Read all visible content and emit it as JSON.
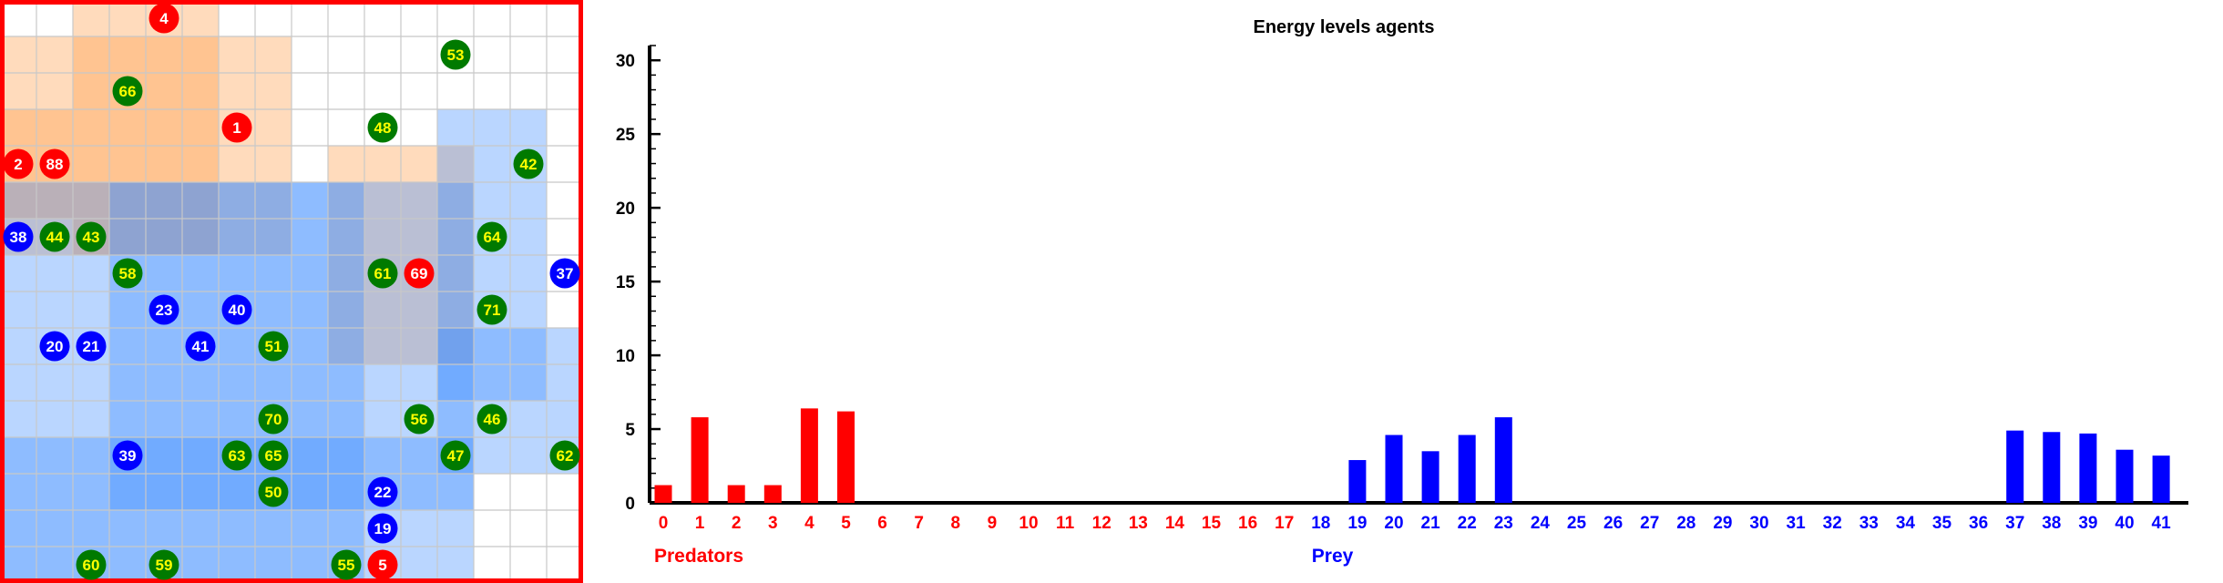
{
  "colors": {
    "predator": "#ff0000",
    "prey": "#0000ff",
    "food": "#007a00",
    "food_label": "#ffff00",
    "agent_label": "#ffffff",
    "grid_line": "#c8c8c8",
    "border": "#ff0000"
  },
  "grid": {
    "columns": 16,
    "rows": 16,
    "orange_zones": [
      [
        2,
        6,
        0,
        7
      ],
      [
        0,
        8,
        1,
        7
      ],
      [
        0,
        2,
        3,
        6
      ],
      [
        9,
        13,
        4,
        10
      ]
    ],
    "blue_zones": [
      [
        0,
        10,
        5,
        16
      ],
      [
        3,
        13,
        5,
        14
      ],
      [
        12,
        15,
        3,
        11
      ],
      [
        12,
        16,
        9,
        13
      ],
      [
        0,
        7,
        12,
        16
      ],
      [
        7,
        13,
        12,
        16
      ]
    ],
    "agents": [
      {
        "id": "4",
        "kind": "predator",
        "col": 4,
        "row": 0
      },
      {
        "id": "53",
        "kind": "food",
        "col": 12,
        "row": 1
      },
      {
        "id": "66",
        "kind": "food",
        "col": 3,
        "row": 2
      },
      {
        "id": "1",
        "kind": "predator",
        "col": 6,
        "row": 3
      },
      {
        "id": "48",
        "kind": "food",
        "col": 10,
        "row": 3
      },
      {
        "id": "2",
        "kind": "predator",
        "col": 0,
        "row": 4
      },
      {
        "id": "88",
        "kind": "predator",
        "col": 1,
        "row": 4
      },
      {
        "id": "42",
        "kind": "food",
        "col": 14,
        "row": 4
      },
      {
        "id": "38",
        "kind": "prey",
        "col": 0,
        "row": 6
      },
      {
        "id": "44",
        "kind": "food",
        "col": 1,
        "row": 6
      },
      {
        "id": "43",
        "kind": "food",
        "col": 2,
        "row": 6
      },
      {
        "id": "64",
        "kind": "food",
        "col": 13,
        "row": 6
      },
      {
        "id": "58",
        "kind": "food",
        "col": 3,
        "row": 7
      },
      {
        "id": "61",
        "kind": "food",
        "col": 10,
        "row": 7
      },
      {
        "id": "69",
        "kind": "predator",
        "col": 11,
        "row": 7
      },
      {
        "id": "37",
        "kind": "prey",
        "col": 15,
        "row": 7
      },
      {
        "id": "23",
        "kind": "prey",
        "col": 4,
        "row": 8
      },
      {
        "id": "40",
        "kind": "prey",
        "col": 6,
        "row": 8
      },
      {
        "id": "71",
        "kind": "food",
        "col": 13,
        "row": 8
      },
      {
        "id": "20",
        "kind": "prey",
        "col": 1,
        "row": 9
      },
      {
        "id": "21",
        "kind": "prey",
        "col": 2,
        "row": 9
      },
      {
        "id": "41",
        "kind": "prey",
        "col": 5,
        "row": 9
      },
      {
        "id": "51",
        "kind": "food",
        "col": 7,
        "row": 9
      },
      {
        "id": "70",
        "kind": "food",
        "col": 7,
        "row": 11
      },
      {
        "id": "56",
        "kind": "food",
        "col": 11,
        "row": 11
      },
      {
        "id": "46",
        "kind": "food",
        "col": 13,
        "row": 11
      },
      {
        "id": "39",
        "kind": "prey",
        "col": 3,
        "row": 12
      },
      {
        "id": "63",
        "kind": "food",
        "col": 6,
        "row": 12
      },
      {
        "id": "65",
        "kind": "food",
        "col": 7,
        "row": 12
      },
      {
        "id": "47",
        "kind": "food",
        "col": 12,
        "row": 12
      },
      {
        "id": "62",
        "kind": "food",
        "col": 15,
        "row": 12
      },
      {
        "id": "50",
        "kind": "food",
        "col": 7,
        "row": 13
      },
      {
        "id": "22",
        "kind": "prey",
        "col": 10,
        "row": 13
      },
      {
        "id": "19",
        "kind": "prey",
        "col": 10,
        "row": 14
      },
      {
        "id": "60",
        "kind": "food",
        "col": 2,
        "row": 15
      },
      {
        "id": "59",
        "kind": "food",
        "col": 4,
        "row": 15
      },
      {
        "id": "55",
        "kind": "food",
        "col": 9,
        "row": 15
      },
      {
        "id": "5",
        "kind": "predator",
        "col": 10,
        "row": 15
      }
    ]
  },
  "chart_data": {
    "type": "bar",
    "title": "Energy levels agents",
    "xlabel": "",
    "ylabel": "",
    "ylim": [
      0,
      31
    ],
    "yticks": [
      0,
      5,
      10,
      15,
      20,
      25,
      30
    ],
    "categories": [
      "0",
      "1",
      "2",
      "3",
      "4",
      "5",
      "6",
      "7",
      "8",
      "9",
      "10",
      "11",
      "12",
      "13",
      "14",
      "15",
      "16",
      "17",
      "18",
      "19",
      "20",
      "21",
      "22",
      "23",
      "24",
      "25",
      "26",
      "27",
      "28",
      "29",
      "30",
      "31",
      "32",
      "33",
      "34",
      "35",
      "36",
      "37",
      "38",
      "39",
      "40",
      "41"
    ],
    "values": [
      1.2,
      5.8,
      1.2,
      1.2,
      6.4,
      6.2,
      0,
      0,
      0,
      0,
      0,
      0,
      0,
      0,
      0,
      0,
      0,
      0,
      0,
      2.9,
      4.6,
      3.5,
      4.6,
      5.8,
      0,
      0,
      0,
      0,
      0,
      0,
      0,
      0,
      0,
      0,
      0,
      0,
      0,
      4.9,
      4.8,
      4.7,
      3.6,
      3.2
    ],
    "groups": [
      {
        "name": "Predators",
        "start": 0,
        "end": 17
      },
      {
        "name": "Prey",
        "start": 18,
        "end": 41
      }
    ],
    "grid": false,
    "legend": "none"
  }
}
